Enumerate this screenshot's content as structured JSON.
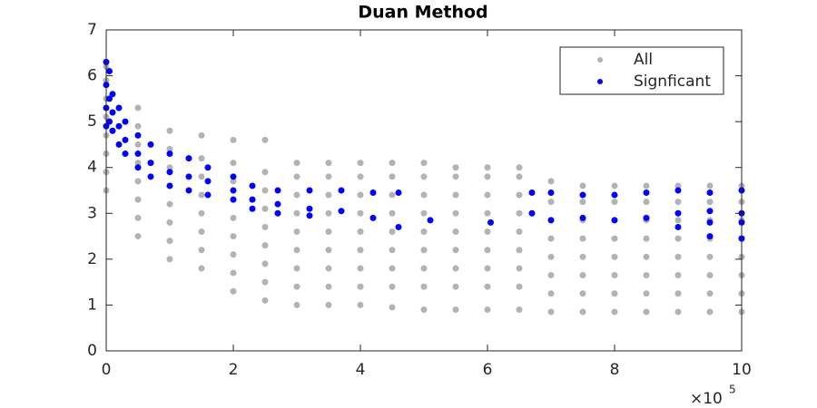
{
  "chart_data": {
    "type": "scatter",
    "title": "Duan Method",
    "x_multiplier": "×10",
    "x_multiplier_exponent": "5",
    "xlim": [
      0,
      10
    ],
    "xticks": [
      0,
      2,
      4,
      6,
      8,
      10
    ],
    "ylim": [
      0,
      7
    ],
    "yticks": [
      0,
      1,
      2,
      3,
      4,
      5,
      6,
      7
    ],
    "grid": false,
    "legend": "upper-right",
    "series": [
      {
        "name": "All",
        "color": "#b3b3b3",
        "x": [
          0,
          0,
          0,
          0,
          0,
          0,
          0,
          0,
          0.5,
          0.5,
          0.5,
          0.5,
          0.5,
          0.5,
          0.5,
          0.5,
          1,
          1,
          1,
          1,
          1,
          1,
          1,
          1,
          1.5,
          1.5,
          1.5,
          1.5,
          1.5,
          1.5,
          1.5,
          1.5,
          2,
          2,
          2,
          2,
          2,
          2,
          2,
          2,
          2,
          2.5,
          2.5,
          2.5,
          2.5,
          2.5,
          2.5,
          2.5,
          2.5,
          2.5,
          3,
          3,
          3,
          3,
          3,
          3,
          3,
          3,
          3,
          3.5,
          3.5,
          3.5,
          3.5,
          3.5,
          3.5,
          3.5,
          3.5,
          3.5,
          4,
          4,
          4,
          4,
          4,
          4,
          4,
          4,
          4,
          4.5,
          4.5,
          4.5,
          4.5,
          4.5,
          4.5,
          4.5,
          4.5,
          4.5,
          5,
          5,
          5,
          5,
          5,
          5,
          5,
          5,
          5,
          5.5,
          5.5,
          5.5,
          5.5,
          5.5,
          5.5,
          5.5,
          5.5,
          5.5,
          6,
          6,
          6,
          6,
          6,
          6,
          6,
          6,
          6,
          6.5,
          6.5,
          6.5,
          6.5,
          6.5,
          6.5,
          6.5,
          6.5,
          6.5,
          7,
          7,
          7,
          7,
          7,
          7,
          7,
          7,
          7.5,
          7.5,
          7.5,
          7.5,
          7.5,
          7.5,
          7.5,
          7.5,
          8,
          8,
          8,
          8,
          8,
          8,
          8,
          8,
          8.5,
          8.5,
          8.5,
          8.5,
          8.5,
          8.5,
          8.5,
          8.5,
          9,
          9,
          9,
          9,
          9,
          9,
          9,
          9,
          9.5,
          9.5,
          9.5,
          9.5,
          9.5,
          9.5,
          9.5,
          9.5,
          10,
          10,
          10,
          10,
          10,
          10,
          10,
          10
        ],
        "values": [
          3.5,
          3.9,
          4.3,
          4.7,
          5.1,
          5.5,
          5.9,
          6.2,
          2.5,
          2.9,
          3.3,
          3.7,
          4.1,
          4.5,
          4.9,
          5.3,
          2.0,
          2.4,
          2.8,
          3.2,
          3.6,
          4.0,
          4.4,
          4.8,
          1.8,
          2.2,
          2.6,
          3.0,
          3.4,
          3.8,
          4.2,
          4.7,
          1.3,
          1.7,
          2.1,
          2.5,
          2.9,
          3.3,
          3.7,
          4.1,
          4.6,
          1.1,
          1.5,
          1.9,
          2.3,
          2.7,
          3.1,
          3.5,
          3.9,
          4.6,
          1.0,
          1.4,
          1.8,
          2.2,
          2.6,
          3.0,
          3.4,
          3.8,
          4.1,
          1.0,
          1.4,
          1.8,
          2.2,
          2.6,
          3.0,
          3.4,
          3.8,
          4.1,
          1.0,
          1.4,
          1.8,
          2.2,
          2.6,
          3.0,
          3.4,
          3.8,
          4.1,
          0.95,
          1.4,
          1.8,
          2.2,
          2.6,
          3.0,
          3.4,
          3.8,
          4.1,
          0.9,
          1.4,
          1.8,
          2.2,
          2.6,
          3.0,
          3.4,
          3.8,
          4.1,
          0.9,
          1.4,
          1.8,
          2.2,
          2.6,
          3.0,
          3.4,
          3.8,
          4.0,
          0.9,
          1.4,
          1.8,
          2.2,
          2.6,
          3.0,
          3.4,
          3.8,
          4.0,
          0.9,
          1.4,
          1.8,
          2.2,
          2.6,
          3.0,
          3.4,
          3.8,
          4.0,
          0.85,
          1.25,
          1.65,
          2.05,
          2.45,
          2.85,
          3.25,
          3.7,
          0.85,
          1.25,
          1.65,
          2.05,
          2.45,
          2.85,
          3.25,
          3.6,
          0.85,
          1.25,
          1.65,
          2.05,
          2.45,
          2.85,
          3.25,
          3.6,
          0.85,
          1.25,
          1.65,
          2.05,
          2.45,
          2.85,
          3.25,
          3.6,
          0.85,
          1.25,
          1.65,
          2.05,
          2.45,
          2.85,
          3.25,
          3.6,
          0.85,
          1.25,
          1.65,
          2.05,
          2.45,
          2.85,
          3.25,
          3.6,
          0.85,
          1.25,
          1.65,
          2.05,
          2.45,
          2.85,
          3.25,
          3.6
        ]
      },
      {
        "name": "Signficant",
        "color": "#0000ff",
        "x": [
          0,
          0,
          0,
          0,
          0.05,
          0.05,
          0.05,
          0.1,
          0.1,
          0.1,
          0.2,
          0.2,
          0.2,
          0.3,
          0.3,
          0.3,
          0.5,
          0.5,
          0.5,
          0.7,
          0.7,
          0.7,
          1.0,
          1.0,
          1.0,
          1.3,
          1.3,
          1.3,
          1.6,
          1.6,
          1.6,
          2.0,
          2.0,
          2.0,
          2.3,
          2.3,
          2.3,
          2.7,
          2.7,
          2.7,
          3.2,
          3.2,
          3.2,
          3.7,
          3.7,
          4.2,
          4.2,
          4.6,
          4.6,
          5.1,
          6.05,
          6.7,
          6.7,
          7.0,
          7.0,
          7.5,
          7.5,
          8.0,
          8.0,
          8.5,
          8.5,
          9.0,
          9.0,
          9.0,
          9.5,
          9.5,
          9.5,
          9.5,
          10,
          10,
          10,
          10
        ],
        "values": [
          6.3,
          5.8,
          5.3,
          4.9,
          6.1,
          5.5,
          5.0,
          5.6,
          5.2,
          4.8,
          5.3,
          4.9,
          4.5,
          5.0,
          4.6,
          4.3,
          4.7,
          4.3,
          4.0,
          4.5,
          4.1,
          3.8,
          4.3,
          3.9,
          3.6,
          4.2,
          3.8,
          3.5,
          4.0,
          3.7,
          3.4,
          3.8,
          3.5,
          3.3,
          3.6,
          3.3,
          3.1,
          3.5,
          3.2,
          3.0,
          3.5,
          3.1,
          2.95,
          3.5,
          3.05,
          3.45,
          2.9,
          3.45,
          2.7,
          2.85,
          2.8,
          3.45,
          3.0,
          3.45,
          2.85,
          3.4,
          2.9,
          3.4,
          2.85,
          3.45,
          2.9,
          3.5,
          3.0,
          2.7,
          3.45,
          3.05,
          2.8,
          2.5,
          3.5,
          3.0,
          2.8,
          2.45
        ]
      }
    ]
  }
}
